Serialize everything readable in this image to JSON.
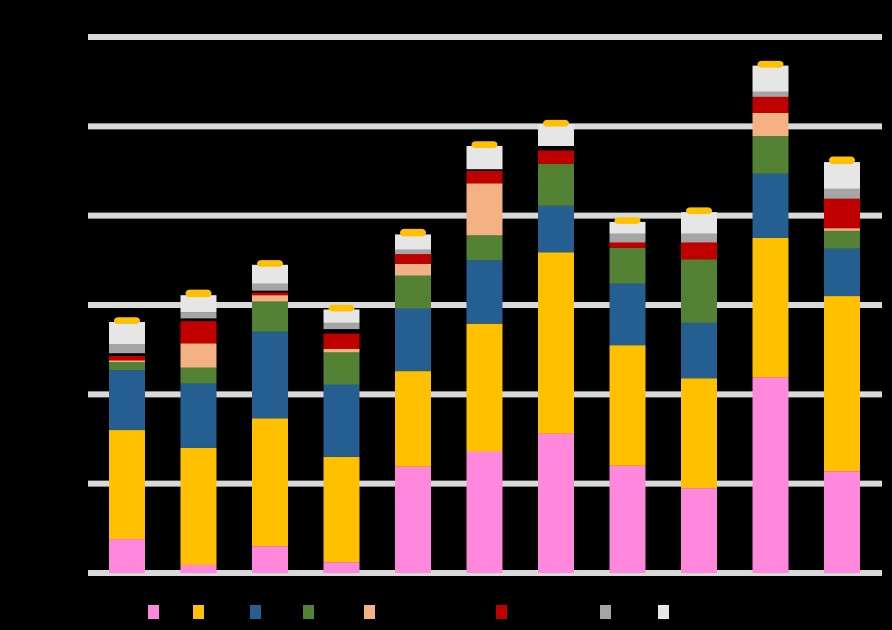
{
  "chart_data": {
    "type": "bar",
    "stacked": true,
    "ylim": [
      0,
      6
    ],
    "grid": true,
    "legend_position": "bottom",
    "categories": [
      "",
      "",
      "",
      "",
      "",
      "",
      "",
      "",
      "",
      "",
      ""
    ],
    "series": [
      {
        "color": "#FF88DD",
        "values": [
          0.38,
          0.09,
          0.3,
          0.12,
          1.19,
          1.36,
          1.56,
          1.2,
          0.95,
          2.19,
          1.14
        ]
      },
      {
        "color": "#FFC000",
        "values": [
          1.22,
          1.31,
          1.43,
          1.18,
          1.07,
          1.43,
          2.03,
          1.35,
          1.23,
          1.56,
          1.96
        ]
      },
      {
        "color": "#255E91",
        "values": [
          0.67,
          0.72,
          0.97,
          0.81,
          0.7,
          0.71,
          0.52,
          0.69,
          0.62,
          0.72,
          0.53
        ]
      },
      {
        "color": "#548235",
        "values": [
          0.09,
          0.18,
          0.34,
          0.36,
          0.37,
          0.28,
          0.47,
          0.4,
          0.71,
          0.42,
          0.2
        ]
      },
      {
        "color": "#F4B183",
        "values": [
          0.02,
          0.27,
          0.07,
          0.04,
          0.13,
          0.58,
          0.0,
          0.0,
          0.0,
          0.26,
          0.03
        ]
      },
      {
        "color": "#C00000",
        "values": [
          0.05,
          0.25,
          0.03,
          0.17,
          0.11,
          0.14,
          0.15,
          0.06,
          0.19,
          0.18,
          0.33
        ]
      },
      {
        "color": "#000000",
        "values": [
          0.03,
          0.03,
          0.02,
          0.05,
          0.0,
          0.02,
          0.05,
          0.0,
          0.0,
          0.0,
          0.0
        ]
      },
      {
        "color": "#A5A5A5",
        "values": [
          0.1,
          0.07,
          0.08,
          0.07,
          0.05,
          0.0,
          0.0,
          0.1,
          0.1,
          0.06,
          0.11
        ]
      },
      {
        "color": "#E7E6E6",
        "values": [
          0.25,
          0.19,
          0.21,
          0.15,
          0.17,
          0.26,
          0.24,
          0.13,
          0.24,
          0.29,
          0.3
        ]
      },
      {
        "color": "#FFC000",
        "values": [
          0.03,
          0.04,
          0.03,
          0.03,
          0.04,
          0.03,
          0.03,
          0.03,
          0.03,
          0.03,
          0.04
        ]
      }
    ],
    "legend": [
      {
        "color": "#FF88DD",
        "label": ""
      },
      {
        "color": "#FFC000",
        "label": ""
      },
      {
        "color": "#255E91",
        "label": ""
      },
      {
        "color": "#548235",
        "label": ""
      },
      {
        "color": "#F4B183",
        "label": ""
      },
      {
        "color": "#C00000",
        "label": ""
      },
      {
        "color": "#A5A5A5",
        "label": ""
      },
      {
        "color": "#E7E6E6",
        "label": ""
      }
    ]
  }
}
